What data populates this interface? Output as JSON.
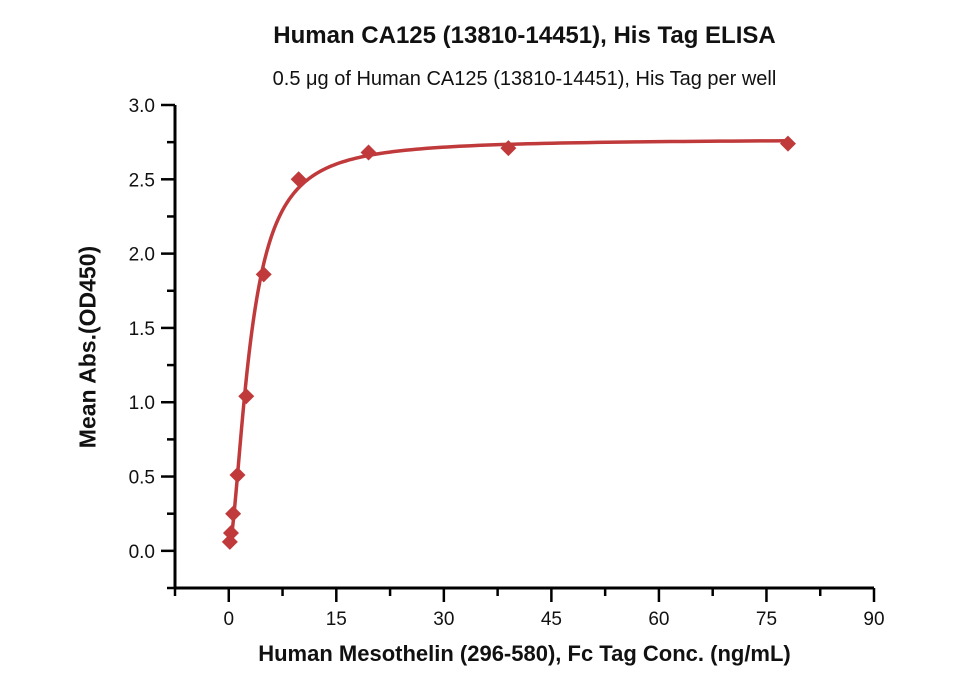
{
  "chart_data": {
    "type": "scatter",
    "title": "Human CA125 (13810-14451), His Tag ELISA",
    "subtitle": "0.5 μg of Human CA125 (13810-14451), His Tag per well",
    "xlabel": "Human Mesothelin (296-580), Fc Tag Conc. (ng/mL)",
    "ylabel": "Mean Abs.(OD450)",
    "xlim": [
      -7.5,
      90
    ],
    "ylim": [
      -0.25,
      3.0
    ],
    "grid": false,
    "legend": "none",
    "x_major_ticks": [
      0,
      15,
      30,
      45,
      60,
      75,
      90
    ],
    "x_tick_labels": [
      "0",
      "15",
      "30",
      "45",
      "60",
      "75",
      "90"
    ],
    "x_minor_ticks": [
      -7.5,
      7.5,
      22.5,
      37.5,
      52.5,
      67.5,
      82.5
    ],
    "y_major_ticks": [
      0,
      0.5,
      1.0,
      1.5,
      2.0,
      2.5,
      3.0
    ],
    "y_tick_labels": [
      "0.0",
      "0.5",
      "1.0",
      "1.5",
      "2.0",
      "2.5",
      "3.0"
    ],
    "y_minor_ticks": [
      -0.25,
      0.25,
      0.75,
      1.25,
      1.75,
      2.25,
      2.75
    ],
    "series": [
      {
        "name": "Mean Abs.(OD450)",
        "marker": "diamond",
        "color": "#c03a3c",
        "x": [
          0.152,
          0.305,
          0.609,
          1.219,
          2.438,
          4.875,
          9.75,
          19.5,
          39,
          78
        ],
        "y": [
          0.06,
          0.12,
          0.25,
          0.51,
          1.04,
          1.86,
          2.5,
          2.68,
          2.71,
          2.74
        ]
      }
    ],
    "fit_curve": {
      "model": "4PL",
      "bottom": 0.02,
      "top": 2.77,
      "ec50": 3.0,
      "hill": 1.7,
      "x_start": 0.15,
      "x_end": 78,
      "color": "#c03a3c"
    }
  },
  "colors": {
    "accent": "#c03a3c",
    "axis": "#000000",
    "text": "#111111",
    "background": "#ffffff"
  }
}
